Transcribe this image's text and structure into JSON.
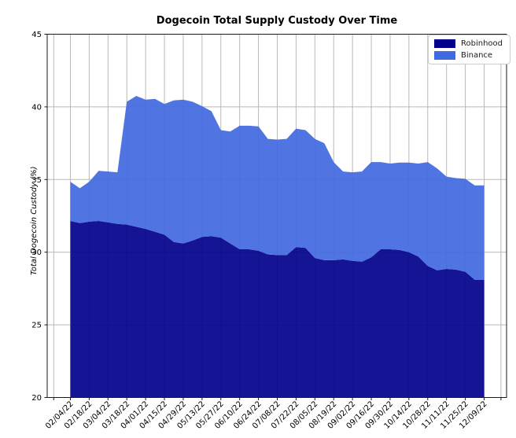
{
  "chart_data": {
    "type": "area",
    "stacked": true,
    "title": "Dogecoin Total Supply Custody Over Time",
    "xlabel": "",
    "ylabel": "Total Dogecoin Custody (%)",
    "ylim": [
      20,
      45
    ],
    "yticks": [
      20,
      25,
      30,
      35,
      40,
      45
    ],
    "grid": true,
    "grid_color": "#b9b9b9",
    "axis_color": "#1a1a1a",
    "legend_position": "upper right",
    "xtick_labels": [
      "02/04/22",
      "02/18/22",
      "03/04/22",
      "03/18/22",
      "04/01/22",
      "04/15/22",
      "04/29/22",
      "05/13/22",
      "05/27/22",
      "06/10/22",
      "06/24/22",
      "07/08/22",
      "07/22/22",
      "08/05/22",
      "08/19/22",
      "09/02/22",
      "09/16/22",
      "09/30/22",
      "10/14/22",
      "10/28/22",
      "11/11/22",
      "11/25/22",
      "12/09/22"
    ],
    "x": [
      "02/04/22",
      "02/11/22",
      "02/18/22",
      "02/25/22",
      "03/04/22",
      "03/11/22",
      "03/18/22",
      "03/25/22",
      "04/01/22",
      "04/08/22",
      "04/15/22",
      "04/22/22",
      "04/29/22",
      "05/06/22",
      "05/13/22",
      "05/20/22",
      "05/27/22",
      "06/03/22",
      "06/10/22",
      "06/17/22",
      "06/24/22",
      "07/01/22",
      "07/08/22",
      "07/15/22",
      "07/22/22",
      "07/29/22",
      "08/05/22",
      "08/12/22",
      "08/19/22",
      "08/26/22",
      "09/02/22",
      "09/09/22",
      "09/16/22",
      "09/23/22",
      "09/30/22",
      "10/07/22",
      "10/14/22",
      "10/21/22",
      "10/28/22",
      "11/04/22",
      "11/11/22",
      "11/18/22",
      "11/25/22",
      "12/02/22",
      "12/09/22"
    ],
    "series": [
      {
        "name": "Robinhood",
        "color": "#00008B",
        "values": [
          32.15,
          32.0,
          32.1,
          32.15,
          32.05,
          31.95,
          31.9,
          31.75,
          31.6,
          31.4,
          31.2,
          30.7,
          30.6,
          30.8,
          31.05,
          31.1,
          31.0,
          30.6,
          30.2,
          30.2,
          30.1,
          29.85,
          29.8,
          29.8,
          30.35,
          30.3,
          29.6,
          29.45,
          29.45,
          29.5,
          29.4,
          29.35,
          29.65,
          30.2,
          30.2,
          30.15,
          30.0,
          29.7,
          29.05,
          28.75,
          28.85,
          28.8,
          28.65,
          28.1,
          28.1
        ]
      },
      {
        "name": "Binance",
        "color": "#4169E1",
        "values": [
          2.7,
          2.4,
          2.75,
          3.45,
          3.5,
          3.55,
          8.45,
          9.0,
          8.9,
          9.15,
          9.0,
          9.75,
          9.9,
          9.55,
          9.0,
          8.6,
          7.4,
          7.7,
          8.5,
          8.5,
          8.55,
          7.95,
          7.95,
          8.0,
          8.15,
          8.1,
          8.2,
          8.05,
          6.75,
          6.05,
          6.1,
          6.2,
          6.55,
          6.0,
          5.9,
          6.02,
          6.17,
          6.4,
          7.15,
          7.02,
          6.35,
          6.3,
          6.4,
          6.5,
          6.5
        ]
      }
    ]
  }
}
